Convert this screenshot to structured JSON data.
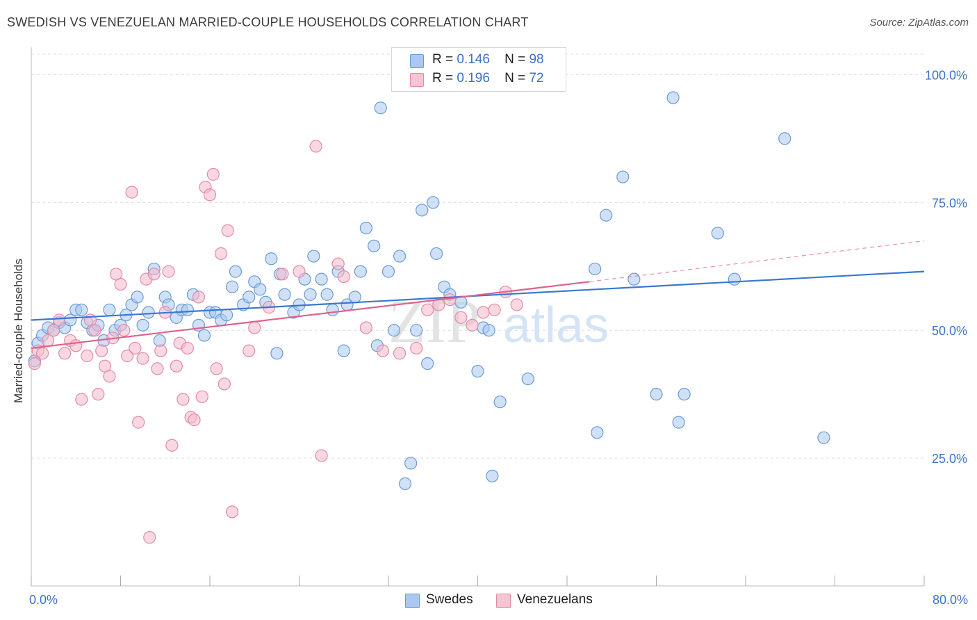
{
  "header": {
    "title": "SWEDISH VS VENEZUELAN MARRIED-COUPLE HOUSEHOLDS CORRELATION CHART",
    "source": "Source: ZipAtlas.com"
  },
  "legend": {
    "r_label": "R =",
    "n_label": "N =",
    "swedes": {
      "r": "0.146",
      "n": "98"
    },
    "venezuelans": {
      "r": "0.196",
      "n": "72"
    }
  },
  "watermark": {
    "zip": "ZIP",
    "atlas": "atlas"
  },
  "chart_data": {
    "type": "scatter",
    "ylabel": "Married-couple Households",
    "xlim": [
      0,
      80
    ],
    "ylim": [
      0,
      104
    ],
    "x_tick_labels": [
      {
        "value": 0,
        "label": "0.0%"
      },
      {
        "value": 80,
        "label": "80.0%"
      }
    ],
    "y_tick_labels": [
      {
        "value": 25,
        "label": "25.0%"
      },
      {
        "value": 50,
        "label": "50.0%"
      },
      {
        "value": 75,
        "label": "75.0%"
      },
      {
        "value": 100,
        "label": "100.0%"
      }
    ],
    "colors": {
      "swedes_fill": "#aac8f0",
      "swedes_stroke": "#6b9bd8",
      "swedes_line": "#3a78d0",
      "venezuelans_fill": "#f6b8cb",
      "venezuelans_stroke": "#e48aa6",
      "venezuelans_line": "#e0608a",
      "axis_text": "#3a72c8",
      "grid": "#dddddd"
    },
    "series": [
      {
        "name": "Swedes",
        "points": [
          [
            0.3,
            44.0
          ],
          [
            0.6,
            47.5
          ],
          [
            1.0,
            49.0
          ],
          [
            1.5,
            50.5
          ],
          [
            2.0,
            50.0
          ],
          [
            2.5,
            51.5
          ],
          [
            3.0,
            50.5
          ],
          [
            3.5,
            52.0
          ],
          [
            4.0,
            54.0
          ],
          [
            4.5,
            54.0
          ],
          [
            5.0,
            51.5
          ],
          [
            5.5,
            50.0
          ],
          [
            6.0,
            51.0
          ],
          [
            6.5,
            48.0
          ],
          [
            7.0,
            54.0
          ],
          [
            7.5,
            50.0
          ],
          [
            8.0,
            51.0
          ],
          [
            8.5,
            53.0
          ],
          [
            9.0,
            55.0
          ],
          [
            9.5,
            56.5
          ],
          [
            10.0,
            51.0
          ],
          [
            10.5,
            53.5
          ],
          [
            11.0,
            62.0
          ],
          [
            11.5,
            48.0
          ],
          [
            12.0,
            56.5
          ],
          [
            12.3,
            55.0
          ],
          [
            13.0,
            52.5
          ],
          [
            13.5,
            54.0
          ],
          [
            14.0,
            54.0
          ],
          [
            14.5,
            57.0
          ],
          [
            15.0,
            51.0
          ],
          [
            15.5,
            49.0
          ],
          [
            16.0,
            53.5
          ],
          [
            16.5,
            53.5
          ],
          [
            17.0,
            52.0
          ],
          [
            17.5,
            53.0
          ],
          [
            18.0,
            58.5
          ],
          [
            18.3,
            61.5
          ],
          [
            19.0,
            55.0
          ],
          [
            19.5,
            56.5
          ],
          [
            20.0,
            59.5
          ],
          [
            20.5,
            58.0
          ],
          [
            21.0,
            55.5
          ],
          [
            21.5,
            64.0
          ],
          [
            22.0,
            45.5
          ],
          [
            22.3,
            61.0
          ],
          [
            22.7,
            57.0
          ],
          [
            23.5,
            53.5
          ],
          [
            24.0,
            55.0
          ],
          [
            24.5,
            60.0
          ],
          [
            25.0,
            57.0
          ],
          [
            25.3,
            64.5
          ],
          [
            26.0,
            60.0
          ],
          [
            26.5,
            57.0
          ],
          [
            27.0,
            54.0
          ],
          [
            27.5,
            61.5
          ],
          [
            28.0,
            46.0
          ],
          [
            28.3,
            55.0
          ],
          [
            29.0,
            56.5
          ],
          [
            29.5,
            61.5
          ],
          [
            30.0,
            70.0
          ],
          [
            30.7,
            66.5
          ],
          [
            31.0,
            47.0
          ],
          [
            31.3,
            93.5
          ],
          [
            32.0,
            61.5
          ],
          [
            32.5,
            50.0
          ],
          [
            33.0,
            64.5
          ],
          [
            33.5,
            20.0
          ],
          [
            34.0,
            24.0
          ],
          [
            34.5,
            50.0
          ],
          [
            35.0,
            73.5
          ],
          [
            35.5,
            43.5
          ],
          [
            36.0,
            75.0
          ],
          [
            36.3,
            65.0
          ],
          [
            37.0,
            58.5
          ],
          [
            37.5,
            57.0
          ],
          [
            38.5,
            55.5
          ],
          [
            40.0,
            42.0
          ],
          [
            40.5,
            50.5
          ],
          [
            41.0,
            50.0
          ],
          [
            41.3,
            21.5
          ],
          [
            42.0,
            36.0
          ],
          [
            43.0,
            99.5
          ],
          [
            44.5,
            40.5
          ],
          [
            47.0,
            99.5
          ],
          [
            50.5,
            62.0
          ],
          [
            50.7,
            30.0
          ],
          [
            51.5,
            72.5
          ],
          [
            53.0,
            80.0
          ],
          [
            54.0,
            60.0
          ],
          [
            56.0,
            37.5
          ],
          [
            57.5,
            95.5
          ],
          [
            58.0,
            32.0
          ],
          [
            58.5,
            37.5
          ],
          [
            61.5,
            69.0
          ],
          [
            63.0,
            60.0
          ],
          [
            67.5,
            87.5
          ],
          [
            71.0,
            29.0
          ]
        ]
      },
      {
        "name": "Venezuelans",
        "points": [
          [
            0.3,
            43.5
          ],
          [
            0.6,
            46.0
          ],
          [
            1.0,
            45.5
          ],
          [
            1.5,
            48.0
          ],
          [
            2.0,
            50.0
          ],
          [
            2.5,
            52.0
          ],
          [
            3.0,
            45.5
          ],
          [
            3.5,
            48.0
          ],
          [
            4.0,
            47.0
          ],
          [
            4.5,
            36.5
          ],
          [
            5.0,
            45.0
          ],
          [
            5.3,
            52.0
          ],
          [
            5.7,
            50.0
          ],
          [
            6.0,
            37.5
          ],
          [
            6.3,
            46.0
          ],
          [
            6.6,
            43.0
          ],
          [
            7.0,
            41.0
          ],
          [
            7.3,
            48.5
          ],
          [
            7.6,
            61.0
          ],
          [
            8.0,
            59.0
          ],
          [
            8.3,
            50.0
          ],
          [
            8.6,
            45.0
          ],
          [
            9.0,
            77.0
          ],
          [
            9.3,
            46.5
          ],
          [
            9.6,
            32.0
          ],
          [
            10.0,
            44.5
          ],
          [
            10.3,
            60.0
          ],
          [
            10.6,
            9.5
          ],
          [
            11.0,
            61.0
          ],
          [
            11.3,
            42.5
          ],
          [
            11.6,
            46.0
          ],
          [
            12.0,
            53.5
          ],
          [
            12.3,
            61.5
          ],
          [
            12.6,
            27.5
          ],
          [
            13.0,
            43.0
          ],
          [
            13.3,
            47.5
          ],
          [
            13.6,
            36.5
          ],
          [
            14.0,
            46.5
          ],
          [
            14.3,
            33.0
          ],
          [
            14.6,
            32.5
          ],
          [
            15.0,
            56.5
          ],
          [
            15.3,
            37.0
          ],
          [
            15.6,
            78.0
          ],
          [
            16.0,
            76.5
          ],
          [
            16.3,
            80.5
          ],
          [
            16.6,
            42.5
          ],
          [
            17.0,
            65.0
          ],
          [
            17.3,
            39.5
          ],
          [
            17.6,
            69.5
          ],
          [
            18.0,
            14.5
          ],
          [
            19.5,
            46.0
          ],
          [
            20.0,
            50.5
          ],
          [
            21.3,
            54.5
          ],
          [
            22.5,
            61.0
          ],
          [
            24.0,
            61.5
          ],
          [
            25.5,
            86.0
          ],
          [
            26.0,
            25.5
          ],
          [
            27.5,
            63.0
          ],
          [
            28.0,
            60.5
          ],
          [
            30.0,
            50.5
          ],
          [
            31.5,
            46.0
          ],
          [
            33.0,
            45.5
          ],
          [
            34.5,
            46.5
          ],
          [
            35.5,
            54.0
          ],
          [
            36.5,
            55.0
          ],
          [
            37.5,
            56.0
          ],
          [
            38.5,
            52.5
          ],
          [
            39.5,
            51.0
          ],
          [
            40.5,
            53.5
          ],
          [
            41.5,
            54.0
          ],
          [
            42.5,
            57.5
          ],
          [
            43.5,
            55.0
          ]
        ]
      }
    ],
    "trend_lines": [
      {
        "series": "Swedes",
        "x0": 0,
        "y0": 52.0,
        "x1": 80,
        "y1": 61.5,
        "style": "solid"
      },
      {
        "series": "Venezuelans",
        "x0": 0,
        "y0": 46.5,
        "x1": 50,
        "y1": 59.5,
        "style": "solid"
      },
      {
        "series": "Venezuelans",
        "x0": 50,
        "y0": 59.5,
        "x1": 80,
        "y1": 67.5,
        "style": "dashed"
      }
    ]
  }
}
